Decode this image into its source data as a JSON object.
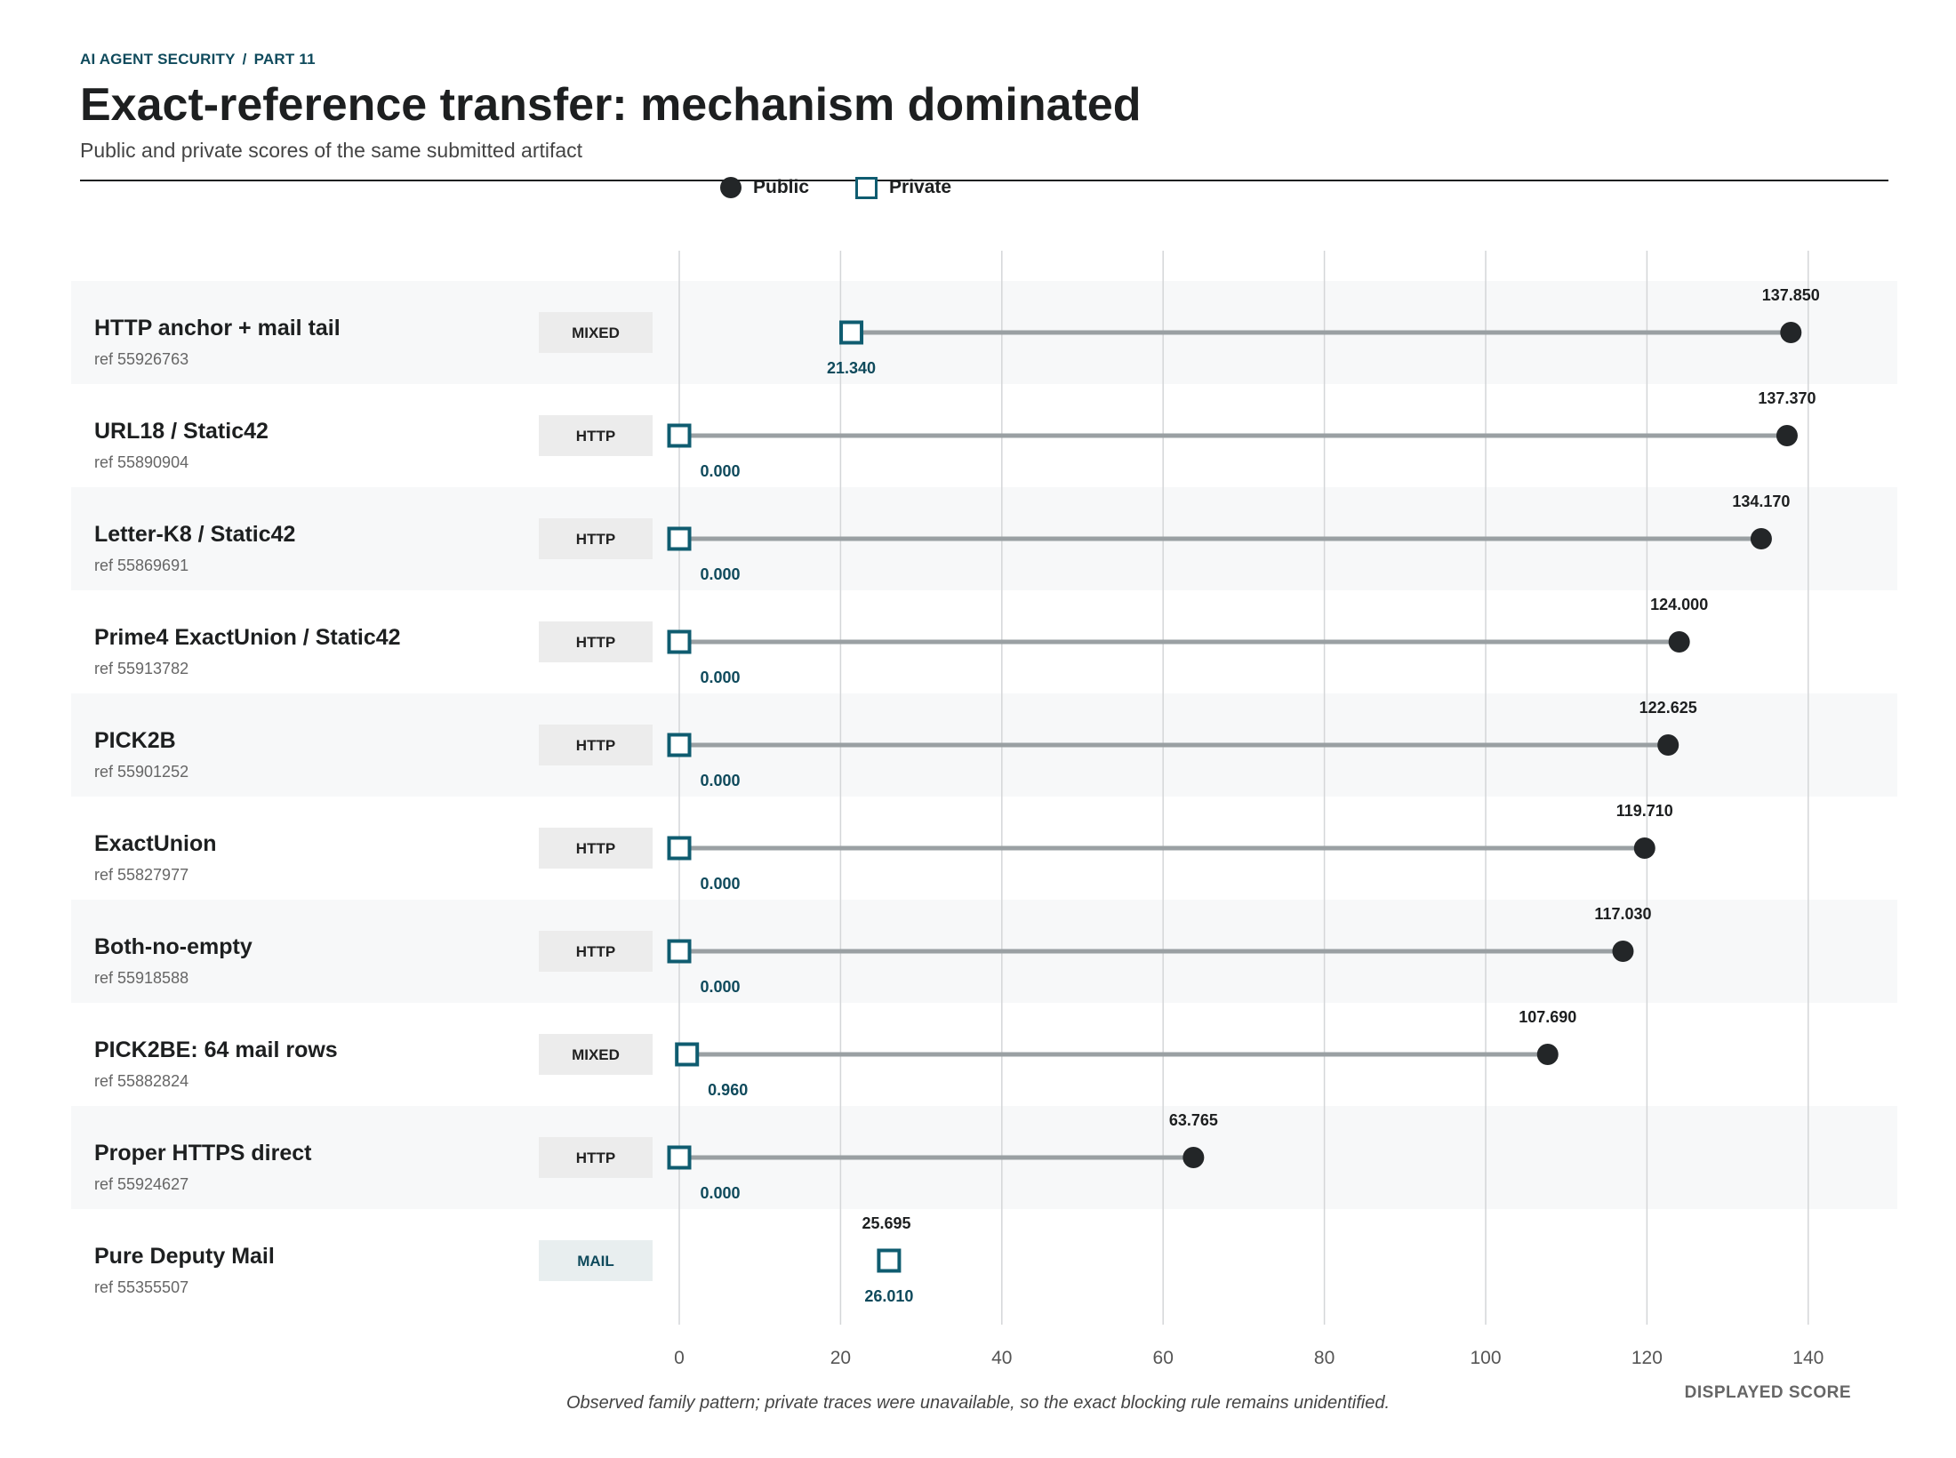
{
  "header": {
    "eyebrow_section": "AI AGENT SECURITY",
    "eyebrow_sep": "/",
    "eyebrow_part": "PART 11",
    "title": "Exact-reference transfer: mechanism dominated",
    "subtitle": "Public and private scores of the same submitted artifact"
  },
  "legend": {
    "public": "Public",
    "private": "Private"
  },
  "colors": {
    "public_marker": "#232628",
    "private_marker": "#0f5c70",
    "connector": "#9aa0a3",
    "gridline": "#d4d6d8",
    "band": "#f7f8f9",
    "tag_bg": "#ececec",
    "mail_tag_bg": "#e8eeef"
  },
  "chart_data": {
    "type": "dumbbell",
    "xlabel": "DISPLAYED SCORE",
    "xlim": [
      0,
      150
    ],
    "xticks": [
      0,
      20,
      40,
      60,
      80,
      100,
      120,
      140
    ],
    "grid": true,
    "series": [
      {
        "name": "Public",
        "marker": "filled-circle"
      },
      {
        "name": "Private",
        "marker": "open-square"
      }
    ],
    "rows": [
      {
        "name": "HTTP anchor + mail tail",
        "ref": "ref 55926763",
        "tag": "MIXED",
        "public": 137.85,
        "private": 21.34,
        "public_label": "137.850",
        "private_label": "21.340"
      },
      {
        "name": "URL18 / Static42",
        "ref": "ref 55890904",
        "tag": "HTTP",
        "public": 137.37,
        "private": 0.0,
        "public_label": "137.370",
        "private_label": "0.000"
      },
      {
        "name": "Letter-K8 / Static42",
        "ref": "ref 55869691",
        "tag": "HTTP",
        "public": 134.17,
        "private": 0.0,
        "public_label": "134.170",
        "private_label": "0.000"
      },
      {
        "name": "Prime4 ExactUnion / Static42",
        "ref": "ref 55913782",
        "tag": "HTTP",
        "public": 124.0,
        "private": 0.0,
        "public_label": "124.000",
        "private_label": "0.000"
      },
      {
        "name": "PICK2B",
        "ref": "ref 55901252",
        "tag": "HTTP",
        "public": 122.625,
        "private": 0.0,
        "public_label": "122.625",
        "private_label": "0.000"
      },
      {
        "name": "ExactUnion",
        "ref": "ref 55827977",
        "tag": "HTTP",
        "public": 119.71,
        "private": 0.0,
        "public_label": "119.710",
        "private_label": "0.000"
      },
      {
        "name": "Both-no-empty",
        "ref": "ref 55918588",
        "tag": "HTTP",
        "public": 117.03,
        "private": 0.0,
        "public_label": "117.030",
        "private_label": "0.000"
      },
      {
        "name": "PICK2BE: 64 mail rows",
        "ref": "ref 55882824",
        "tag": "MIXED",
        "public": 107.69,
        "private": 0.96,
        "public_label": "107.690",
        "private_label": "0.960"
      },
      {
        "name": "Proper HTTPS direct",
        "ref": "ref 55924627",
        "tag": "HTTP",
        "public": 63.765,
        "private": 0.0,
        "public_label": "63.765",
        "private_label": "0.000"
      },
      {
        "name": "Pure Deputy Mail",
        "ref": "ref 55355507",
        "tag": "MAIL",
        "public": 25.695,
        "private": 26.01,
        "public_label": "25.695",
        "private_label": "26.010"
      }
    ],
    "annotation": "Observed family pattern; private traces were unavailable, so the exact blocking rule remains unidentified."
  }
}
